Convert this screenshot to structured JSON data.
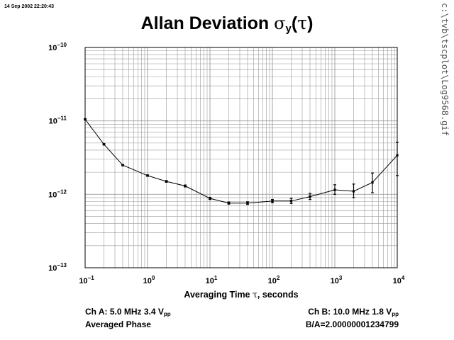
{
  "header": {
    "timestamp": "14 Sep 2002 22:20:43",
    "side_path": "c:\\tvb\\tscplot\\Log9568.gif",
    "title_main": "Allan Deviation ",
    "title_sigma": "σ",
    "title_sub": "y",
    "title_paren_open": "(",
    "title_tau": "τ",
    "title_paren_close": ")"
  },
  "axes": {
    "xlabel_pre": "Averaging Time ",
    "xlabel_tau": "τ",
    "xlabel_post": ", seconds",
    "y_ticks": [
      {
        "base": "10",
        "exp": "−10"
      },
      {
        "base": "10",
        "exp": "−11"
      },
      {
        "base": "10",
        "exp": "−12"
      },
      {
        "base": "10",
        "exp": "−13"
      }
    ],
    "x_ticks": [
      {
        "base": "10",
        "exp": "−1"
      },
      {
        "base": "10",
        "exp": "0"
      },
      {
        "base": "10",
        "exp": "1"
      },
      {
        "base": "10",
        "exp": "2"
      },
      {
        "base": "10",
        "exp": "3"
      },
      {
        "base": "10",
        "exp": "4"
      }
    ]
  },
  "info": {
    "ch_a_prefix": "Ch A: 5.0 MHz 3.4 V",
    "ch_a_sub": "pp",
    "mode": "Averaged Phase",
    "ch_b_prefix": "Ch B: 10.0 MHz 1.8 V",
    "ch_b_sub": "pp",
    "ratio": "B/A=2.00000001234799"
  },
  "chart_data": {
    "type": "line",
    "x_scale": "log",
    "y_scale": "log",
    "xlim": [
      0.1,
      10000
    ],
    "ylim": [
      1e-13,
      1e-10
    ],
    "grid": true,
    "series": [
      {
        "x": [
          0.1,
          0.2,
          0.4,
          1,
          2,
          4,
          10,
          20,
          40,
          100,
          200,
          400,
          1000,
          2000,
          4000,
          10000
        ],
        "y": [
          1.05e-11,
          4.8e-12,
          2.5e-12,
          1.8e-12,
          1.5e-12,
          1.3e-12,
          8.8e-13,
          7.6e-13,
          7.6e-13,
          8.1e-13,
          8.1e-13,
          9.3e-13,
          1.15e-12,
          1.1e-12,
          1.45e-12,
          3.4e-12
        ],
        "y_err_low": [
          1.03e-11,
          4.7e-12,
          2.45e-12,
          1.76e-12,
          1.46e-12,
          1.26e-12,
          8.5e-13,
          7.35e-13,
          7.3e-13,
          7.7e-13,
          7.5e-13,
          8.5e-13,
          1e-12,
          9e-13,
          1.05e-12,
          1.8e-12
        ],
        "y_err_high": [
          1.07e-11,
          4.9e-12,
          2.55e-12,
          1.84e-12,
          1.54e-12,
          1.34e-12,
          9.1e-13,
          7.85e-13,
          7.9e-13,
          8.5e-13,
          8.8e-13,
          1.03e-12,
          1.35e-12,
          1.38e-12,
          1.95e-12,
          5.1e-12
        ]
      }
    ]
  }
}
